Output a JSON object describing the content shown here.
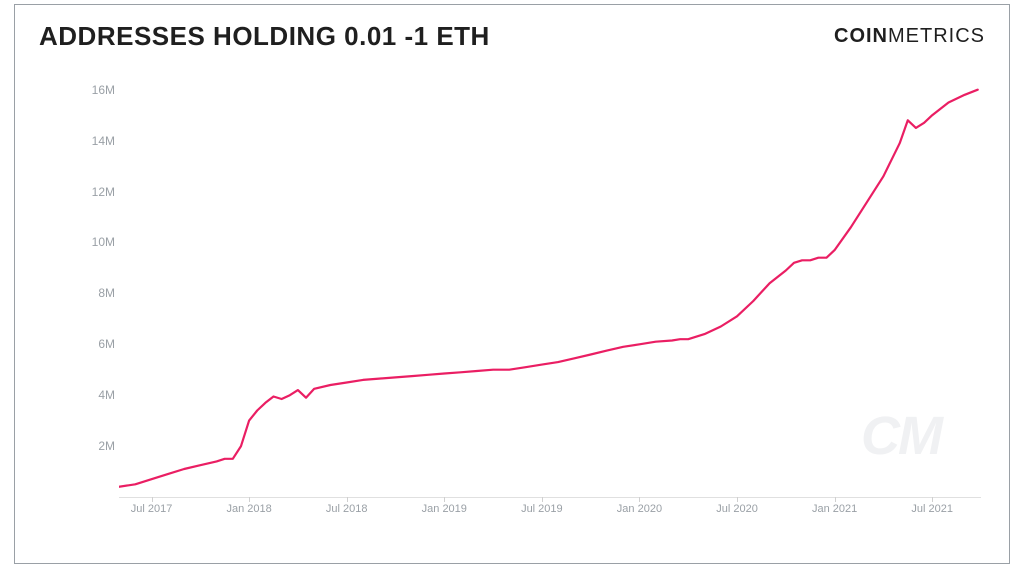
{
  "title": "ADDRESSES HOLDING 0.01 -1 ETH",
  "brand_bold": "COIN",
  "brand_light": "METRICS",
  "watermark": "CM",
  "chart": {
    "type": "line",
    "background_color": "#ffffff",
    "border_color": "#9aa0a6",
    "line_color": "#ea1e63",
    "line_width": 2.2,
    "tick_color": "#9aa0a6",
    "tick_fontsize": 12,
    "title_fontsize": 26,
    "title_weight": 800,
    "ylim": [
      0,
      16500000
    ],
    "yticks": [
      2000000,
      4000000,
      6000000,
      8000000,
      10000000,
      12000000,
      14000000,
      16000000
    ],
    "ytick_labels": [
      "2M",
      "4M",
      "6M",
      "8M",
      "10M",
      "12M",
      "14M",
      "16M"
    ],
    "x_start_month": 4,
    "x_end_month": 57,
    "xticks_months": [
      6,
      12,
      18,
      24,
      30,
      36,
      42,
      48,
      54
    ],
    "xtick_labels": [
      "Jul 2017",
      "Jan 2018",
      "Jul 2018",
      "Jan 2019",
      "Jul 2019",
      "Jan 2020",
      "Jul 2020",
      "Jan 2021",
      "Jul 2021"
    ],
    "series": [
      {
        "m": 4,
        "v": 400000
      },
      {
        "m": 5,
        "v": 500000
      },
      {
        "m": 6,
        "v": 700000
      },
      {
        "m": 7,
        "v": 900000
      },
      {
        "m": 8,
        "v": 1100000
      },
      {
        "m": 9,
        "v": 1250000
      },
      {
        "m": 10,
        "v": 1400000
      },
      {
        "m": 10.5,
        "v": 1500000
      },
      {
        "m": 11,
        "v": 1500000
      },
      {
        "m": 11.5,
        "v": 2000000
      },
      {
        "m": 12,
        "v": 3000000
      },
      {
        "m": 12.5,
        "v": 3400000
      },
      {
        "m": 13,
        "v": 3700000
      },
      {
        "m": 13.5,
        "v": 3950000
      },
      {
        "m": 14,
        "v": 3850000
      },
      {
        "m": 14.5,
        "v": 4000000
      },
      {
        "m": 15,
        "v": 4200000
      },
      {
        "m": 15.5,
        "v": 3900000
      },
      {
        "m": 16,
        "v": 4250000
      },
      {
        "m": 17,
        "v": 4400000
      },
      {
        "m": 18,
        "v": 4500000
      },
      {
        "m": 19,
        "v": 4600000
      },
      {
        "m": 20,
        "v": 4650000
      },
      {
        "m": 21,
        "v": 4700000
      },
      {
        "m": 22,
        "v": 4750000
      },
      {
        "m": 23,
        "v": 4800000
      },
      {
        "m": 24,
        "v": 4850000
      },
      {
        "m": 25,
        "v": 4900000
      },
      {
        "m": 26,
        "v": 4950000
      },
      {
        "m": 27,
        "v": 5000000
      },
      {
        "m": 28,
        "v": 5000000
      },
      {
        "m": 29,
        "v": 5100000
      },
      {
        "m": 30,
        "v": 5200000
      },
      {
        "m": 31,
        "v": 5300000
      },
      {
        "m": 32,
        "v": 5450000
      },
      {
        "m": 33,
        "v": 5600000
      },
      {
        "m": 34,
        "v": 5750000
      },
      {
        "m": 35,
        "v": 5900000
      },
      {
        "m": 36,
        "v": 6000000
      },
      {
        "m": 37,
        "v": 6100000
      },
      {
        "m": 38,
        "v": 6150000
      },
      {
        "m": 38.5,
        "v": 6200000
      },
      {
        "m": 39,
        "v": 6200000
      },
      {
        "m": 40,
        "v": 6400000
      },
      {
        "m": 41,
        "v": 6700000
      },
      {
        "m": 42,
        "v": 7100000
      },
      {
        "m": 43,
        "v": 7700000
      },
      {
        "m": 44,
        "v": 8400000
      },
      {
        "m": 45,
        "v": 8900000
      },
      {
        "m": 45.5,
        "v": 9200000
      },
      {
        "m": 46,
        "v": 9300000
      },
      {
        "m": 46.5,
        "v": 9300000
      },
      {
        "m": 47,
        "v": 9400000
      },
      {
        "m": 47.5,
        "v": 9400000
      },
      {
        "m": 48,
        "v": 9700000
      },
      {
        "m": 49,
        "v": 10600000
      },
      {
        "m": 50,
        "v": 11600000
      },
      {
        "m": 51,
        "v": 12600000
      },
      {
        "m": 52,
        "v": 13900000
      },
      {
        "m": 52.5,
        "v": 14800000
      },
      {
        "m": 53,
        "v": 14500000
      },
      {
        "m": 53.5,
        "v": 14700000
      },
      {
        "m": 54,
        "v": 15000000
      },
      {
        "m": 55,
        "v": 15500000
      },
      {
        "m": 56,
        "v": 15800000
      },
      {
        "m": 56.8,
        "v": 16000000
      }
    ]
  }
}
